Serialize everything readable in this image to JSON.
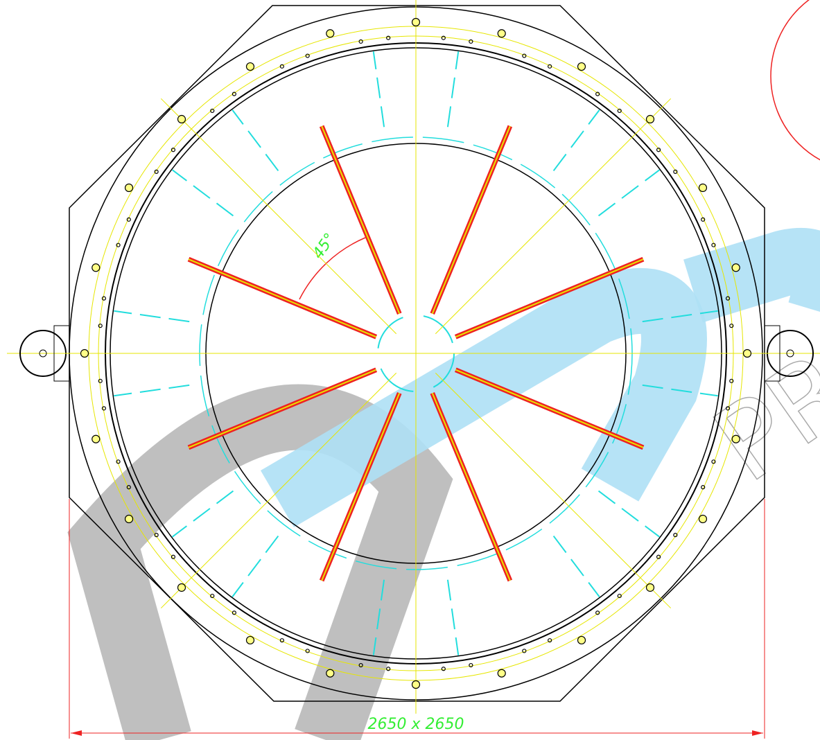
{
  "annotations": {
    "angle": "45°",
    "dimension": "2650 x 2650"
  },
  "watermark": "PRO"
}
